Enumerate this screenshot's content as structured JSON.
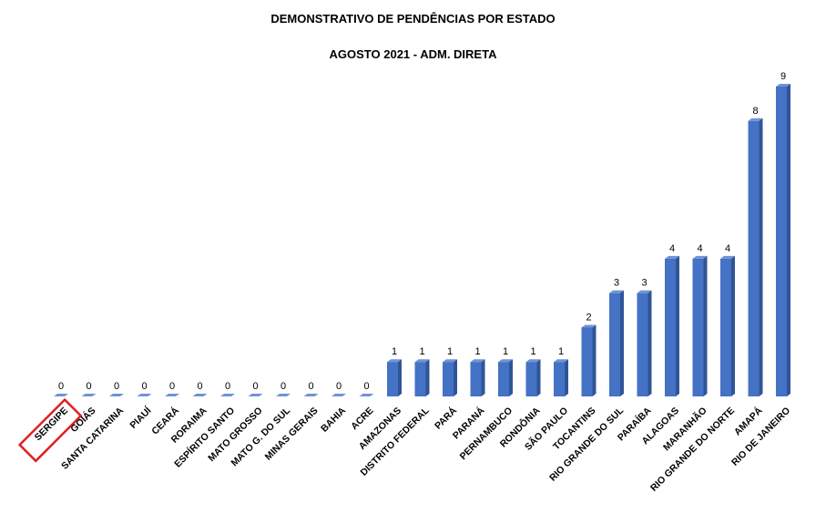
{
  "chart_data": {
    "type": "bar",
    "title": "DEMONSTRATIVO DE PENDÊNCIAS POR ESTADO",
    "subtitle": "AGOSTO 2021 - ADM. DIRETA",
    "categories": [
      "SERGIPE",
      "GOIÁS",
      "SANTA CATARINA",
      "PIAUÍ",
      "CEARÁ",
      "RORAIMA",
      "ESPÍRITO SANTO",
      "MATO GROSSO",
      "MATO G. DO SUL",
      "MINAS GERAIS",
      "BAHIA",
      "ACRE",
      "AMAZONAS",
      "DISTRITO FEDERAL",
      "PARÁ",
      "PARANÁ",
      "PERNAMBUCO",
      "RONDÔNIA",
      "SÃO PAULO",
      "TOCANTINS",
      "RIO GRANDE DO SUL",
      "PARAÍBA",
      "ALAGOAS",
      "MARANHÃO",
      "RIO GRANDE DO NORTE",
      "AMAPÁ",
      "RIO DE JANEIRO"
    ],
    "values": [
      0,
      0,
      0,
      0,
      0,
      0,
      0,
      0,
      0,
      0,
      0,
      0,
      1,
      1,
      1,
      1,
      1,
      1,
      1,
      2,
      3,
      3,
      4,
      4,
      4,
      8,
      9
    ],
    "ylim": [
      0,
      9
    ],
    "grid": false,
    "legend": "none",
    "highlighted_category": "SERGIPE",
    "colors": {
      "bar_front": "#4472c4",
      "bar_side": "#2f5597",
      "bar_top": "#6f93d6",
      "highlight_box": "#e02020"
    }
  }
}
